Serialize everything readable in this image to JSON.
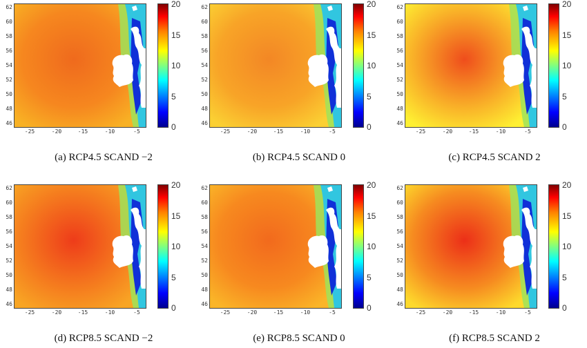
{
  "y_ticks": [
    "62",
    "60",
    "58",
    "56",
    "54",
    "52",
    "50",
    "48",
    "46"
  ],
  "x_ticks": [
    "-25",
    "-20",
    "-15",
    "-10",
    "-5"
  ],
  "colorbar_ticks": [
    "20",
    "15",
    "10",
    "5",
    "0"
  ],
  "colormap": "jet",
  "panels": [
    {
      "caption": "(a) RCP4.5 SCAND −2",
      "field_color": "#f6871f",
      "hot_color": "#ef6a1d",
      "coast_color": "#f8b124"
    },
    {
      "caption": "(b) RCP4.5 SCAND 0",
      "field_color": "#f8a427",
      "hot_color": "#f38725",
      "coast_color": "#fbd033"
    },
    {
      "caption": "(c) RCP4.5 SCAND 2",
      "field_color": "#f9b028",
      "hot_color": "#ef4d1c",
      "coast_color": "#fef032"
    },
    {
      "caption": "(d) RCP8.5 SCAND −2",
      "field_color": "#f57b1e",
      "hot_color": "#ee3c1a",
      "coast_color": "#f8a524"
    },
    {
      "caption": "(e) RCP8.5 SCAND 0",
      "field_color": "#f7891f",
      "hot_color": "#f26a1d",
      "coast_color": "#fab528"
    },
    {
      "caption": "(f) RCP8.5 SCAND 2",
      "field_color": "#f68a20",
      "hot_color": "#ec2f18",
      "coast_color": "#fdd92c"
    }
  ]
}
